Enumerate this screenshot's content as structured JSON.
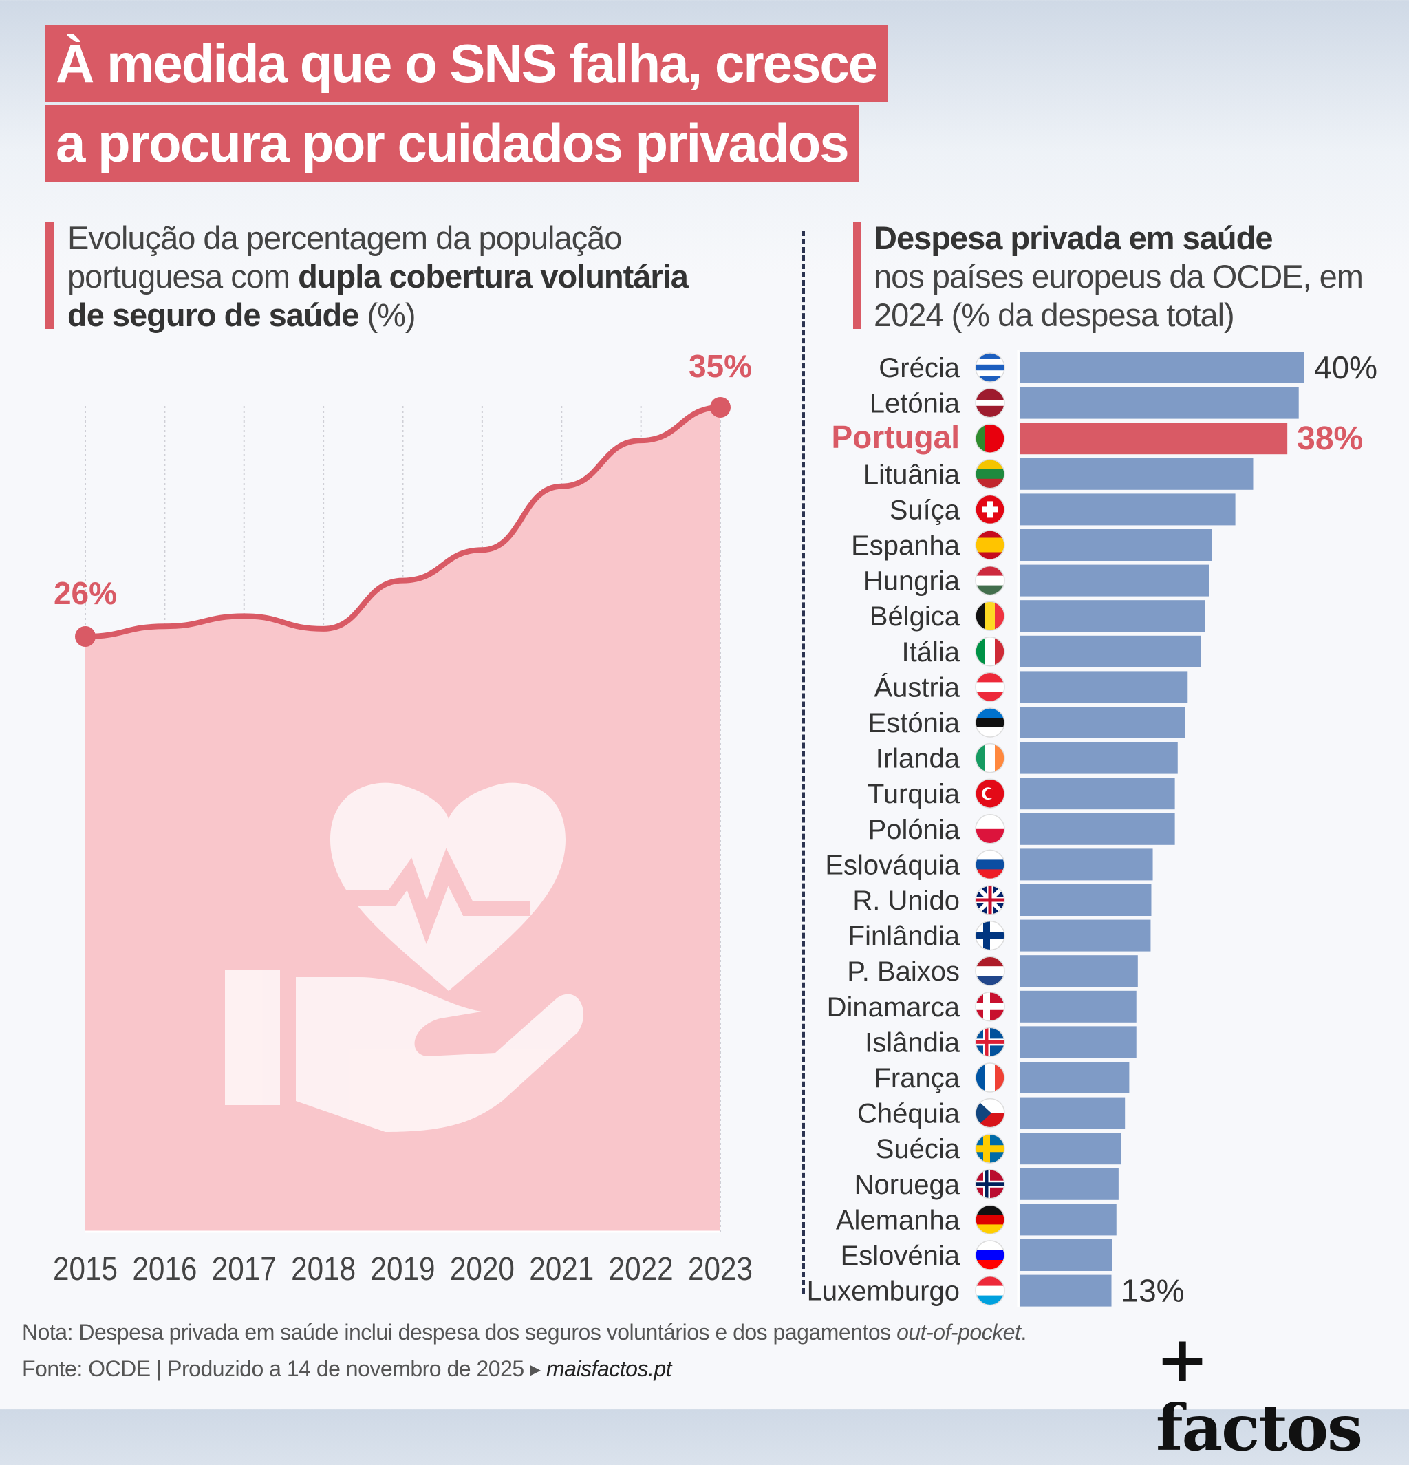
{
  "title": {
    "line1": "À medida que o SNS falha, cresce",
    "line2": "a procura por cuidados privados"
  },
  "left_subtitle": {
    "part1": "Evolução da percentagem da população portuguesa com ",
    "bold": "dupla cobertura voluntária de seguro de saúde",
    "part2": " (%)"
  },
  "right_subtitle": {
    "bold": "Despesa privada em saúde",
    "rest": "nos países europeus da OCDE, em 2024 (% da despesa total)"
  },
  "colors": {
    "accent": "#d95a65",
    "area": "#f9c6cb",
    "bar": "#7f9bc6",
    "highlight_bar": "#d95a65"
  },
  "chart_data": [
    {
      "type": "area",
      "x": [
        2015,
        2016,
        2017,
        2018,
        2019,
        2020,
        2021,
        2022,
        2023
      ],
      "values": [
        26,
        26.4,
        26.8,
        26.3,
        28.2,
        29.4,
        31.9,
        33.7,
        35
      ],
      "tick_labels": [
        "2015",
        "2016",
        "2017",
        "2018",
        "2019",
        "2020",
        "2021",
        "2022",
        "2023"
      ],
      "data_labels": {
        "first": "26%",
        "last": "35%"
      },
      "grid": "vertical dotted",
      "icon": "heart-in-hand-icon"
    },
    {
      "type": "bar",
      "orientation": "horizontal",
      "xlim": [
        0,
        40
      ],
      "highlight": "Portugal",
      "data_labels": {
        "Grécia": "40%",
        "Portugal": "38%",
        "Luxemburgo": "13%"
      },
      "categories": [
        "Grécia",
        "Letónia",
        "Portugal",
        "Lituânia",
        "Suíça",
        "Espanha",
        "Hungria",
        "Bélgica",
        "Itália",
        "Áustria",
        "Estónia",
        "Irlanda",
        "Turquia",
        "Polónia",
        "Eslováquia",
        "R. Unido",
        "Finlândia",
        "P. Baixos",
        "Dinamarca",
        "Islândia",
        "França",
        "Chéquia",
        "Suécia",
        "Noruega",
        "Alemanha",
        "Eslovénia",
        "Luxemburgo"
      ],
      "values": [
        40,
        39.2,
        37.6,
        32.8,
        30.3,
        27,
        26.6,
        26,
        25.5,
        23.6,
        23.2,
        22.2,
        21.8,
        21.8,
        18.7,
        18.5,
        18.4,
        16.6,
        16.4,
        16.4,
        15.4,
        14.8,
        14.3,
        13.9,
        13.6,
        13,
        12.9
      ],
      "flags": [
        {
          "dir": "h",
          "c": [
            "#1d5fbf",
            "#ffffff",
            "#1d5fbf",
            "#ffffff",
            "#1d5fbf"
          ]
        },
        {
          "dir": "h",
          "c": [
            "#9e1b2e",
            "#9e1b2e",
            "#ffffff",
            "#9e1b2e",
            "#9e1b2e"
          ]
        },
        {
          "dir": "v",
          "c": [
            "#2e8b2e",
            "#e8000d",
            "#e8000d"
          ]
        },
        {
          "dir": "h",
          "c": [
            "#f5c400",
            "#1e8a3e",
            "#c1272d"
          ]
        },
        {
          "dir": "h",
          "c": [
            "#e30613"
          ],
          "mark": "cross"
        },
        {
          "dir": "h",
          "c": [
            "#c60b1e",
            "#ffc400",
            "#ffc400",
            "#c60b1e"
          ]
        },
        {
          "dir": "h",
          "c": [
            "#cd2a3e",
            "#ffffff",
            "#436f4d"
          ]
        },
        {
          "dir": "v",
          "c": [
            "#111111",
            "#fdda24",
            "#ef3340"
          ]
        },
        {
          "dir": "v",
          "c": [
            "#009246",
            "#ffffff",
            "#ce2b37"
          ]
        },
        {
          "dir": "h",
          "c": [
            "#ed2939",
            "#ffffff",
            "#ed2939"
          ]
        },
        {
          "dir": "h",
          "c": [
            "#0072ce",
            "#111111",
            "#ffffff"
          ]
        },
        {
          "dir": "v",
          "c": [
            "#169b62",
            "#ffffff",
            "#ff883e"
          ]
        },
        {
          "dir": "h",
          "c": [
            "#e30a17"
          ],
          "mark": "crescent"
        },
        {
          "dir": "h",
          "c": [
            "#ffffff",
            "#dc143c"
          ]
        },
        {
          "dir": "h",
          "c": [
            "#ffffff",
            "#0b4ea2",
            "#ee1c25"
          ]
        },
        {
          "dir": "h",
          "c": [
            "#012169"
          ],
          "mark": "union"
        },
        {
          "dir": "h",
          "c": [
            "#ffffff"
          ],
          "mark": "nordic-blue"
        },
        {
          "dir": "h",
          "c": [
            "#ae1c28",
            "#ffffff",
            "#21468b"
          ]
        },
        {
          "dir": "h",
          "c": [
            "#c8102e"
          ],
          "mark": "nordic-white"
        },
        {
          "dir": "h",
          "c": [
            "#02529c"
          ],
          "mark": "nordic-red"
        },
        {
          "dir": "v",
          "c": [
            "#0055a4",
            "#ffffff",
            "#ef4135"
          ]
        },
        {
          "dir": "h",
          "c": [
            "#ffffff",
            "#d7141a"
          ],
          "mark": "czech"
        },
        {
          "dir": "h",
          "c": [
            "#006aa7"
          ],
          "mark": "nordic-yellow"
        },
        {
          "dir": "h",
          "c": [
            "#ba0c2f"
          ],
          "mark": "nordic-blue-white"
        },
        {
          "dir": "h",
          "c": [
            "#111111",
            "#dd0000",
            "#ffce00"
          ]
        },
        {
          "dir": "h",
          "c": [
            "#ffffff",
            "#0000ff",
            "#ff0000"
          ]
        },
        {
          "dir": "h",
          "c": [
            "#ed2939",
            "#ffffff",
            "#00a1de"
          ]
        }
      ]
    }
  ],
  "footer": {
    "note_prefix": "Nota: Despesa privada em saúde inclui despesa dos seguros voluntários e dos pagamentos ",
    "note_italic": "out-of-pocket",
    "note_suffix": ".",
    "source": "Fonte: OCDE | Produzido a 14 de novembro de 2025 ▸ ",
    "site": "maisfactos.pt"
  },
  "logo": "+ factos"
}
